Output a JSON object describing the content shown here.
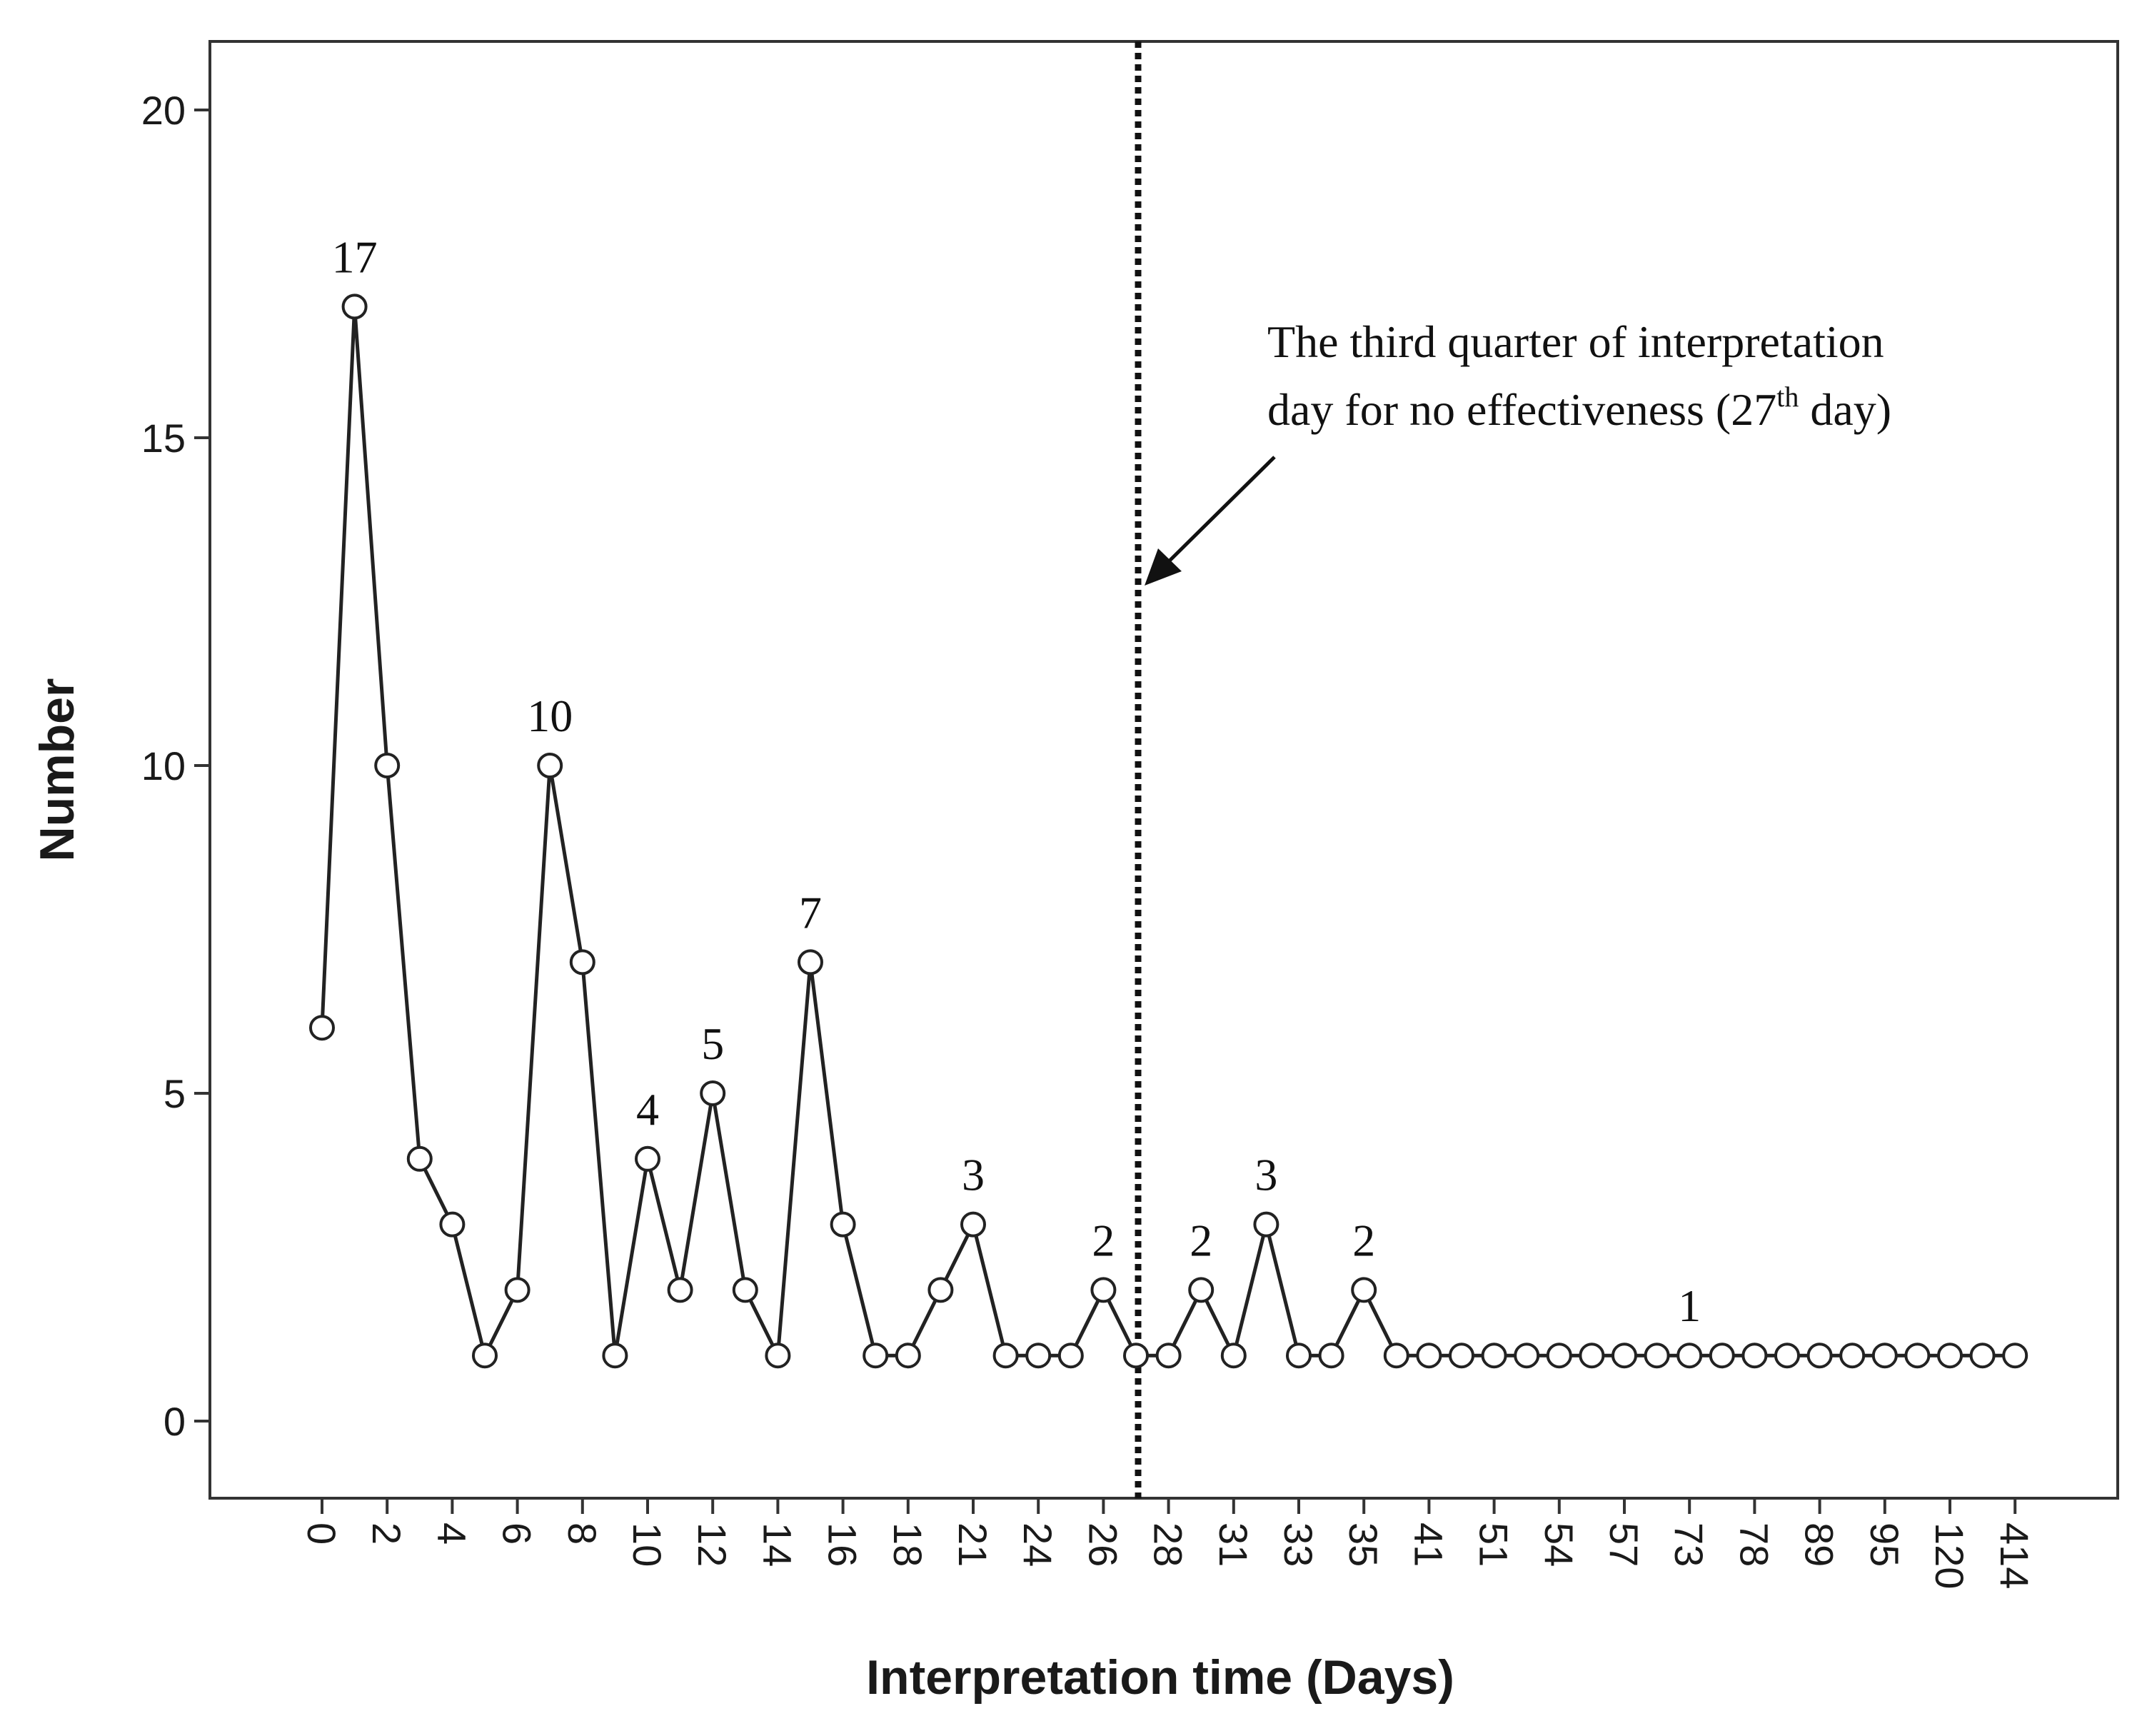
{
  "chart_data": {
    "type": "line",
    "title": "",
    "xlabel": "Interpretation time (Days)",
    "ylabel": "Number",
    "ylim": [
      -1,
      21
    ],
    "yticks": [
      0,
      5,
      10,
      15,
      20
    ],
    "grid": false,
    "x_scale": "categorical",
    "x_categories_shown": [
      "0",
      "2",
      "4",
      "6",
      "8",
      "10",
      "12",
      "14",
      "16",
      "18",
      "21",
      "24",
      "26",
      "28",
      "31",
      "33",
      "35",
      "41",
      "51",
      "54",
      "57",
      "73",
      "78",
      "89",
      "95",
      "120",
      "414"
    ],
    "series": [
      {
        "values": [
          6,
          17,
          10,
          4,
          3,
          1,
          2,
          10,
          7,
          1,
          4,
          2,
          5,
          2,
          1,
          7,
          3,
          1,
          1,
          2,
          3,
          1,
          1,
          1,
          2,
          1,
          1,
          2,
          1,
          3,
          1,
          1,
          2,
          1,
          1,
          1,
          1,
          1,
          1,
          1,
          1,
          1,
          1,
          1,
          1,
          1,
          1,
          1,
          1,
          1,
          1,
          1,
          1
        ]
      }
    ],
    "data_labels": [
      "17",
      "10",
      "4",
      "5",
      "7",
      "3",
      "2",
      "2",
      "3",
      "2",
      "1"
    ],
    "vertical_line": {
      "position_category": "27",
      "style": "dotted"
    },
    "annotation": {
      "line1": "The third quarter of interpretation",
      "line2_pre": "day for no effectiveness (27",
      "line2_sup": "th",
      "line2_post": " day)"
    }
  },
  "colors": {
    "line": "#222222",
    "marker": "#222222",
    "axis": "#333333",
    "text": "#111111"
  }
}
